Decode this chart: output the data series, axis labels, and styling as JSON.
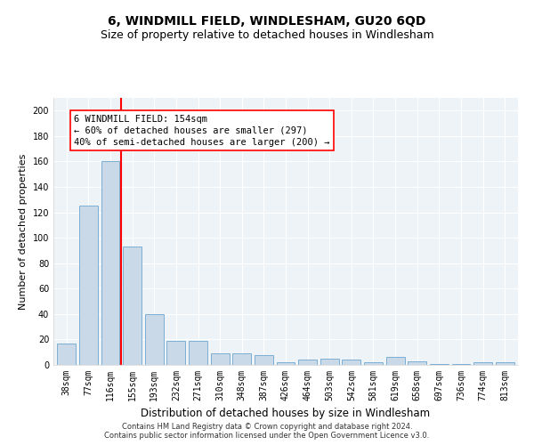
{
  "title1": "6, WINDMILL FIELD, WINDLESHAM, GU20 6QD",
  "title2": "Size of property relative to detached houses in Windlesham",
  "xlabel": "Distribution of detached houses by size in Windlesham",
  "ylabel": "Number of detached properties",
  "categories": [
    "38sqm",
    "77sqm",
    "116sqm",
    "155sqm",
    "193sqm",
    "232sqm",
    "271sqm",
    "310sqm",
    "348sqm",
    "387sqm",
    "426sqm",
    "464sqm",
    "503sqm",
    "542sqm",
    "581sqm",
    "619sqm",
    "658sqm",
    "697sqm",
    "736sqm",
    "774sqm",
    "813sqm"
  ],
  "values": [
    17,
    125,
    160,
    93,
    40,
    19,
    19,
    9,
    9,
    8,
    2,
    4,
    5,
    4,
    2,
    6,
    3,
    1,
    1,
    2,
    2
  ],
  "bar_color": "#c9d9e8",
  "bar_edge_color": "#7bafd4",
  "vline_color": "red",
  "annotation_box_text": "6 WINDMILL FIELD: 154sqm\n← 60% of detached houses are smaller (297)\n40% of semi-detached houses are larger (200) →",
  "ylim": [
    0,
    210
  ],
  "yticks": [
    0,
    20,
    40,
    60,
    80,
    100,
    120,
    140,
    160,
    180,
    200
  ],
  "footer1": "Contains HM Land Registry data © Crown copyright and database right 2024.",
  "footer2": "Contains public sector information licensed under the Open Government Licence v3.0.",
  "background_color": "#eef3f8",
  "title1_fontsize": 10,
  "title2_fontsize": 9,
  "xlabel_fontsize": 8.5,
  "ylabel_fontsize": 8,
  "tick_fontsize": 7,
  "annotation_fontsize": 7.5,
  "footer_fontsize": 6
}
